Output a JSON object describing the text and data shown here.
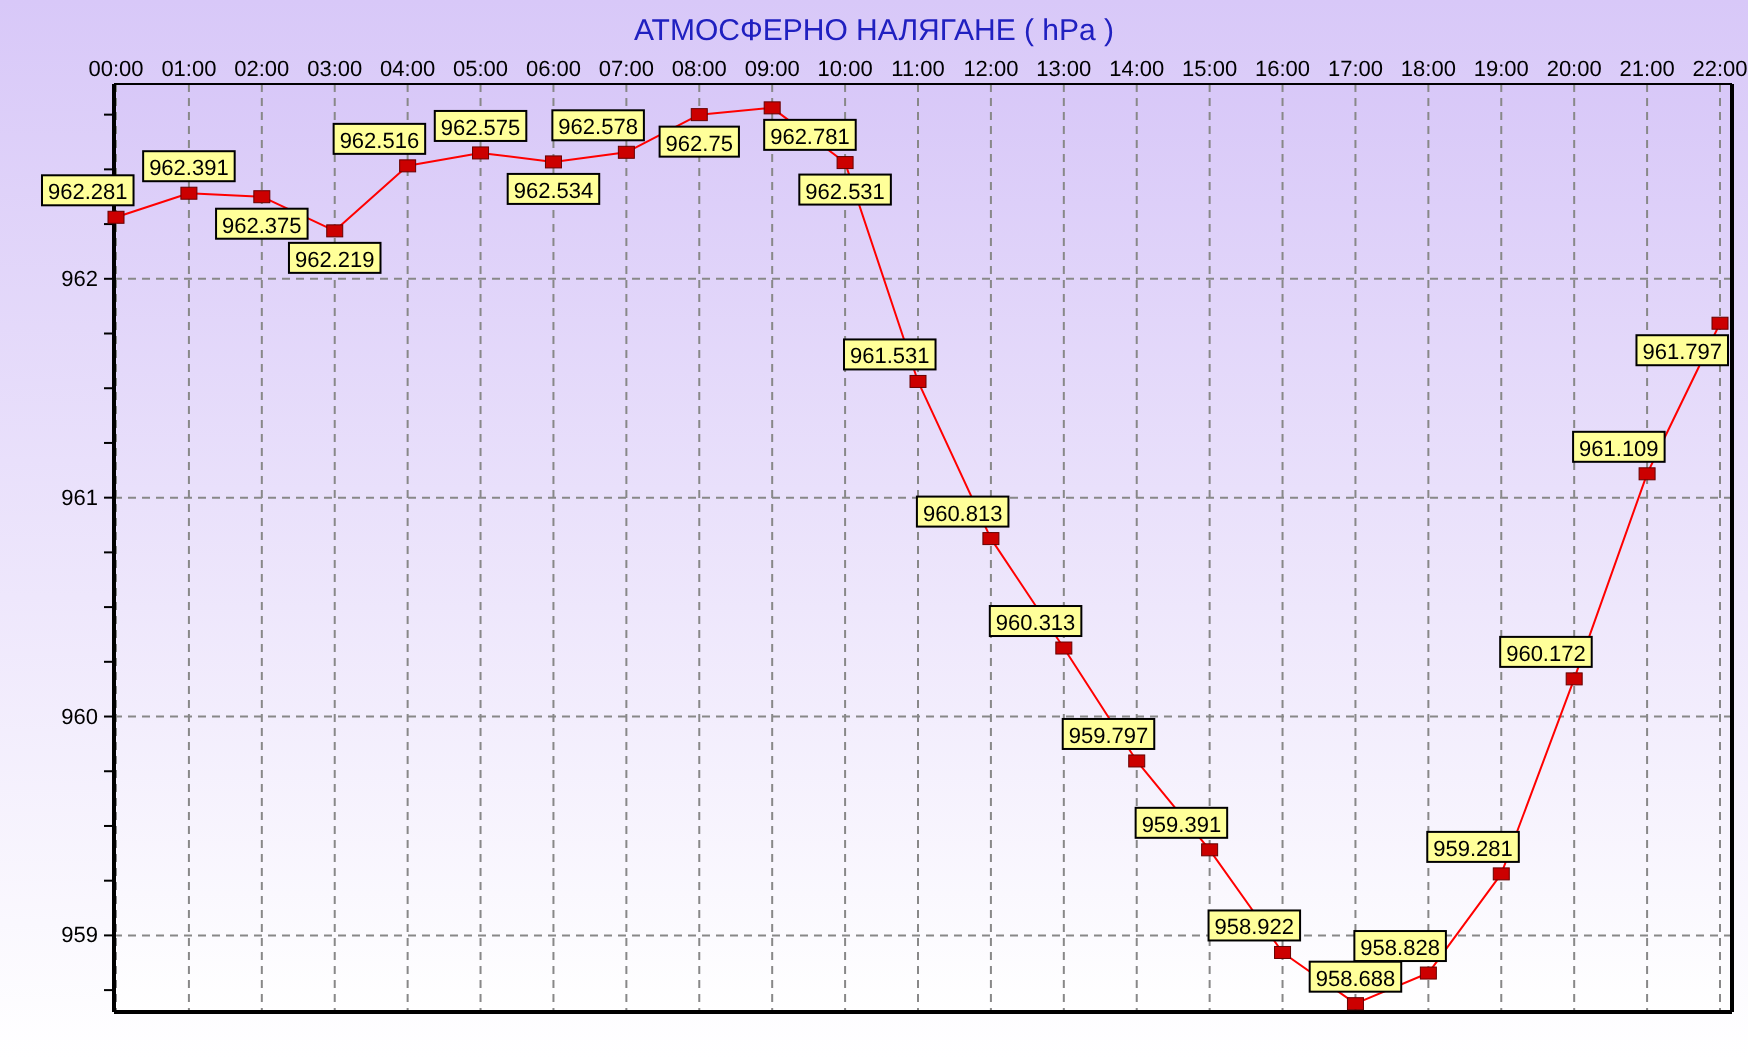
{
  "chart_data": {
    "type": "line",
    "title": "АТМОСФЕРНО НАЛЯГАНЕ  ( hPa )",
    "categories": [
      "00:00",
      "01:00",
      "02:00",
      "03:00",
      "04:00",
      "05:00",
      "06:00",
      "07:00",
      "08:00",
      "09:00",
      "10:00",
      "11:00",
      "12:00",
      "13:00",
      "14:00",
      "15:00",
      "16:00",
      "17:00",
      "18:00",
      "19:00",
      "20:00",
      "21:00",
      "22:00"
    ],
    "series": [
      {
        "color": "#ff0000",
        "values": [
          962.281,
          962.391,
          962.375,
          962.219,
          962.516,
          962.575,
          962.534,
          962.578,
          962.75,
          962.781,
          962.531,
          961.531,
          960.813,
          960.313,
          959.797,
          959.391,
          958.922,
          958.688,
          958.828,
          959.281,
          960.172,
          961.109,
          961.797
        ]
      }
    ],
    "ylim": [
      958.65,
      962.89
    ],
    "yticks": [
      {
        "value": 958.75,
        "label": null
      },
      959,
      {
        "value": 959.25,
        "label": null
      },
      {
        "value": 959.5,
        "label": null
      },
      {
        "value": 959.75,
        "label": null
      },
      960,
      {
        "value": 960.25,
        "label": null
      },
      {
        "value": 960.5,
        "label": null
      },
      {
        "value": 960.75,
        "label": null
      },
      961,
      {
        "value": 961.25,
        "label": null
      },
      {
        "value": 961.5,
        "label": null
      },
      {
        "value": 961.75,
        "label": null
      },
      962,
      {
        "value": 962.25,
        "label": null
      },
      {
        "value": 962.5,
        "label": null
      },
      {
        "value": 962.75,
        "label": null
      }
    ],
    "grid": true,
    "marker": "square",
    "line_style": "solid",
    "data_labels": true
  }
}
